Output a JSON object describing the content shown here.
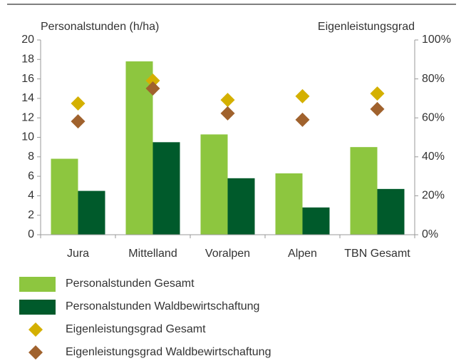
{
  "chart_data": {
    "type": "bar",
    "y_label": "Personalstunden (h/ha)",
    "y2_label": "Eigenleistungsgrad",
    "categories": [
      "Jura",
      "Mittelland",
      "Voralpen",
      "Alpen",
      "TBN Gesamt"
    ],
    "series": [
      {
        "name": "Personalstunden Gesamt",
        "color": "#8dc63f",
        "type": "bar",
        "values": [
          7.8,
          17.8,
          10.3,
          6.3,
          9.0
        ]
      },
      {
        "name": "Personalstunden Waldbewirtschaftung",
        "color": "#005a2b",
        "type": "bar",
        "values": [
          4.5,
          9.5,
          5.8,
          2.8,
          4.7
        ]
      },
      {
        "name": "Eigenleistungsgrad Gesamt",
        "color": "#d4b000",
        "type": "scatter",
        "axis": "y2",
        "values": [
          67.4,
          79.1,
          69.2,
          71.1,
          72.5
        ]
      },
      {
        "name": "Eigenleistungsgrad Waldbewirtschaftung",
        "color": "#a0622d",
        "type": "scatter",
        "axis": "y2",
        "values": [
          58.2,
          75.1,
          62.3,
          59.0,
          64.5
        ]
      }
    ],
    "ylim": [
      0,
      20
    ],
    "yticks": [
      0,
      2,
      4,
      6,
      8,
      10,
      12,
      14,
      16,
      18,
      20
    ],
    "y2lim": [
      0,
      100
    ],
    "y2ticks": [
      {
        "value": 0,
        "label": "0%"
      },
      {
        "value": 20,
        "label": "20%"
      },
      {
        "value": 40,
        "label": "40%"
      },
      {
        "value": 60,
        "label": "60%"
      },
      {
        "value": 80,
        "label": "80%"
      },
      {
        "value": 100,
        "label": "100%"
      }
    ],
    "grid": false
  }
}
